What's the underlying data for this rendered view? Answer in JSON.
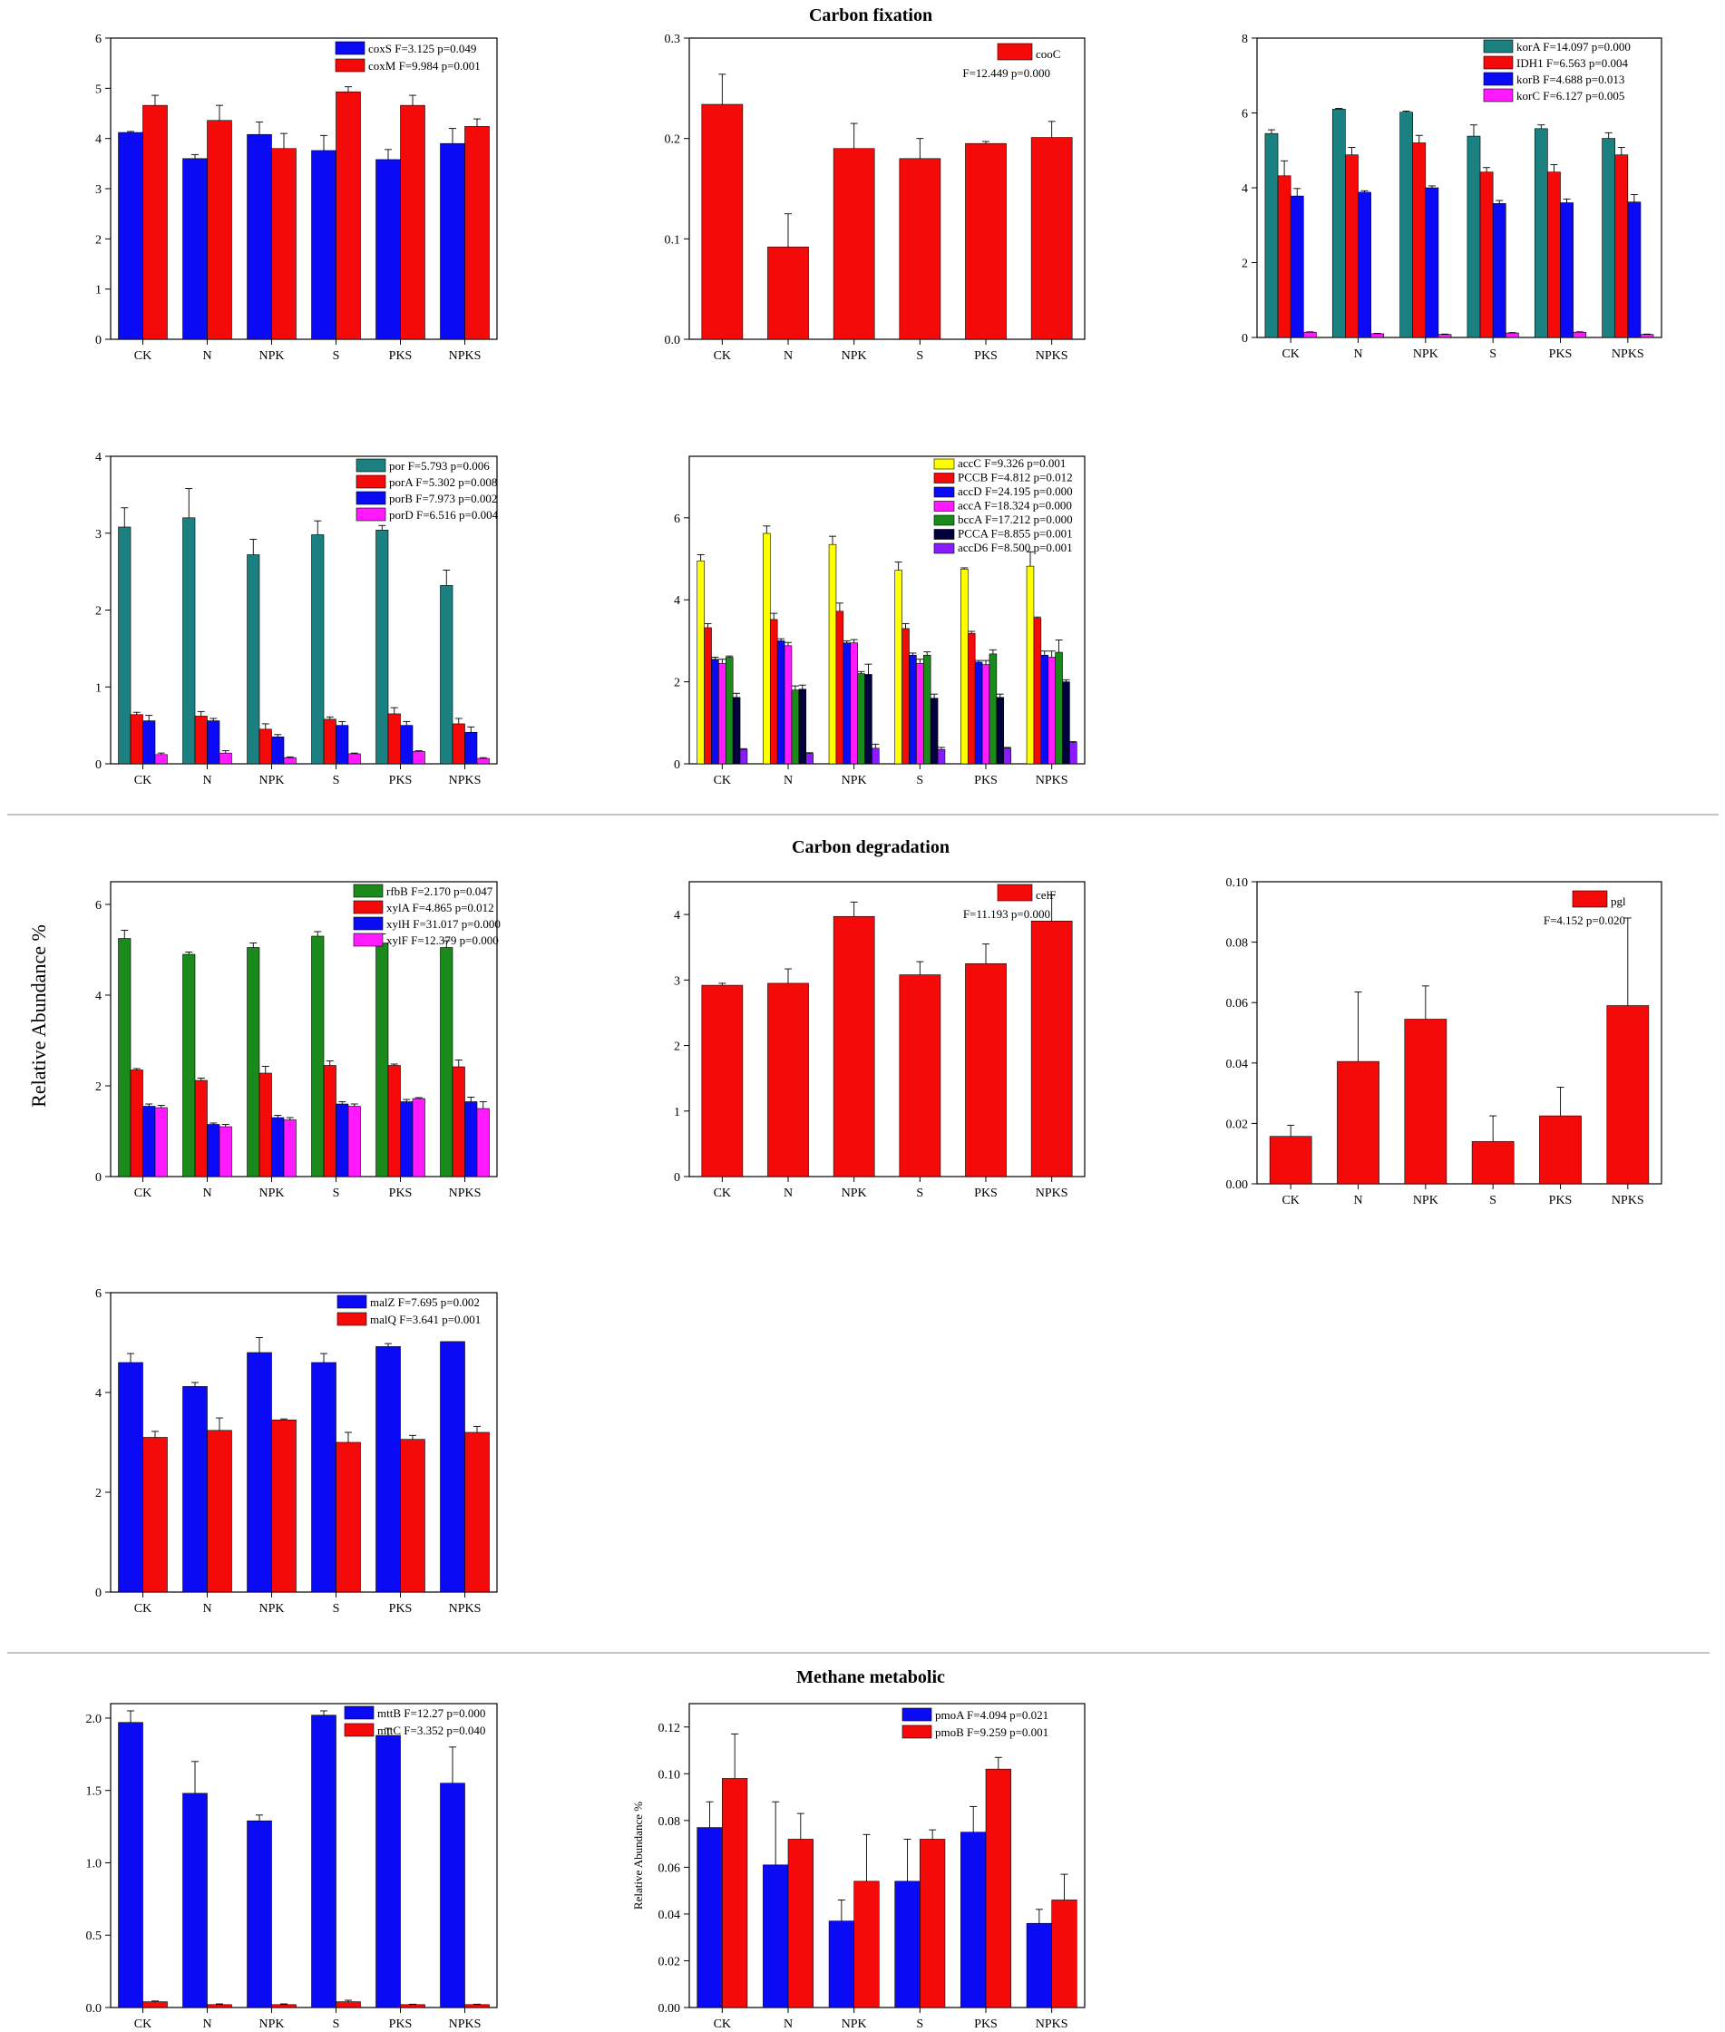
{
  "sections": [
    {
      "title": "Carbon fixation"
    },
    {
      "title": "Carbon degradation"
    },
    {
      "title": "Methane metabolic"
    }
  ],
  "y_axis_label": "Relative Abundance %",
  "colors": {
    "blue": "#0a0af5",
    "red": "#f50a0a",
    "teal": "#1a8080",
    "magenta": "#ff1aff",
    "yellow": "#ffff00",
    "green": "#1a8a1a",
    "navy": "#00003d",
    "purple": "#8a1aff"
  },
  "chart_data": [
    {
      "type": "bar",
      "categories": [
        "CK",
        "N",
        "NPK",
        "S",
        "PKS",
        "NPKS"
      ],
      "ylim": [
        0,
        6
      ],
      "yticks": [
        "0",
        "1",
        "2",
        "3",
        "4",
        "5",
        "6"
      ],
      "series": [
        {
          "name": "coxS  F=3.125 p=0.049",
          "color": "blue",
          "values": [
            4.12,
            3.6,
            4.08,
            3.76,
            3.58,
            3.9
          ],
          "err": [
            0.02,
            0.08,
            0.25,
            0.3,
            0.2,
            0.3
          ]
        },
        {
          "name": "coxM F=9.984 p=0.001",
          "color": "red",
          "values": [
            4.66,
            4.36,
            3.8,
            4.93,
            4.66,
            4.24
          ],
          "err": [
            0.2,
            0.3,
            0.3,
            0.1,
            0.2,
            0.15
          ]
        }
      ]
    },
    {
      "type": "bar",
      "categories": [
        "CK",
        "N",
        "NPK",
        "S",
        "PKS",
        "NPKS"
      ],
      "ylim": [
        0,
        0.3
      ],
      "yticks": [
        "0.0",
        "0.1",
        "0.2",
        "0.3"
      ],
      "annotation": "F=12.449 p=0.000",
      "series": [
        {
          "name": "cooC",
          "color": "red",
          "values": [
            0.234,
            0.092,
            0.19,
            0.18,
            0.195,
            0.201
          ],
          "err": [
            0.03,
            0.033,
            0.025,
            0.02,
            0.002,
            0.016
          ]
        }
      ]
    },
    {
      "type": "bar",
      "categories": [
        "CK",
        "N",
        "NPK",
        "S",
        "PKS",
        "NPKS"
      ],
      "ylim": [
        0,
        8
      ],
      "yticks": [
        "0",
        "2",
        "4",
        "6",
        "8"
      ],
      "series": [
        {
          "name": "korA  F=14.097 p=0.000",
          "color": "teal",
          "values": [
            5.45,
            6.1,
            6.02,
            5.38,
            5.58,
            5.32
          ],
          "err": [
            0.1,
            0.02,
            0.03,
            0.3,
            0.1,
            0.15
          ]
        },
        {
          "name": "IDH1  F=6.563 p=0.004",
          "color": "red",
          "values": [
            4.32,
            4.88,
            5.2,
            4.42,
            4.42,
            4.88
          ],
          "err": [
            0.4,
            0.2,
            0.2,
            0.12,
            0.2,
            0.2
          ]
        },
        {
          "name": "korB  F=4.688 p=0.013",
          "color": "blue",
          "values": [
            3.78,
            3.88,
            4.0,
            3.58,
            3.6,
            3.62
          ],
          "err": [
            0.2,
            0.04,
            0.05,
            0.08,
            0.1,
            0.2
          ]
        },
        {
          "name": "korC  F=6.127 p=0.005",
          "color": "magenta",
          "values": [
            0.14,
            0.1,
            0.08,
            0.12,
            0.14,
            0.08
          ],
          "err": [
            0.01,
            0.01,
            0.01,
            0.01,
            0.01,
            0.01
          ]
        }
      ]
    },
    {
      "type": "bar",
      "categories": [
        "CK",
        "N",
        "NPK",
        "S",
        "PKS",
        "NPKS"
      ],
      "ylim": [
        0,
        4
      ],
      "yticks": [
        "0",
        "1",
        "2",
        "3",
        "4"
      ],
      "series": [
        {
          "name": "por    F=5.793 p=0.006",
          "color": "teal",
          "values": [
            3.08,
            3.2,
            2.72,
            2.98,
            3.04,
            2.32
          ],
          "err": [
            0.25,
            0.38,
            0.2,
            0.18,
            0.06,
            0.2
          ]
        },
        {
          "name": "porA  F=5.302 p=0.008",
          "color": "red",
          "values": [
            0.64,
            0.62,
            0.45,
            0.58,
            0.65,
            0.52
          ],
          "err": [
            0.03,
            0.06,
            0.07,
            0.03,
            0.08,
            0.07
          ]
        },
        {
          "name": "porB F=7.973 p=0.002",
          "color": "blue",
          "values": [
            0.56,
            0.56,
            0.35,
            0.5,
            0.5,
            0.41
          ],
          "err": [
            0.07,
            0.03,
            0.03,
            0.05,
            0.05,
            0.07
          ]
        },
        {
          "name": "porD  F=6.516 p=0.004",
          "color": "magenta",
          "values": [
            0.12,
            0.14,
            0.08,
            0.13,
            0.16,
            0.07
          ],
          "err": [
            0.02,
            0.03,
            0.01,
            0.01,
            0.01,
            0.01
          ]
        }
      ]
    },
    {
      "type": "bar",
      "categories": [
        "CK",
        "N",
        "NPK",
        "S",
        "PKS",
        "NPKS"
      ],
      "ylim": [
        0,
        7.5
      ],
      "yticks": [
        "0",
        "2",
        "4",
        "6"
      ],
      "series": [
        {
          "name": "accC      F=9.326 p=0.001",
          "color": "yellow",
          "values": [
            4.95,
            5.62,
            5.35,
            4.72,
            4.75,
            4.82
          ],
          "err": [
            0.15,
            0.18,
            0.2,
            0.2,
            0.03,
            0.35
          ]
        },
        {
          "name": "PCCB     F=4.812 p=0.012",
          "color": "red",
          "values": [
            3.32,
            3.52,
            3.72,
            3.3,
            3.18,
            3.55
          ],
          "err": [
            0.1,
            0.15,
            0.2,
            0.12,
            0.05,
            0.03
          ]
        },
        {
          "name": "accD      F=24.195 p=0.000",
          "color": "blue",
          "values": [
            2.55,
            3.0,
            2.95,
            2.65,
            2.48,
            2.65
          ],
          "err": [
            0.05,
            0.05,
            0.05,
            0.05,
            0.04,
            0.1
          ]
        },
        {
          "name": "accA      F=18.324 p=0.000",
          "color": "magenta",
          "values": [
            2.45,
            2.88,
            2.95,
            2.45,
            2.42,
            2.6
          ],
          "err": [
            0.1,
            0.08,
            0.08,
            0.1,
            0.1,
            0.15
          ]
        },
        {
          "name": "bccA      F=17.212 p=0.000",
          "color": "green",
          "values": [
            2.6,
            1.8,
            2.2,
            2.65,
            2.68,
            2.72
          ],
          "err": [
            0.03,
            0.1,
            0.05,
            0.08,
            0.1,
            0.3
          ]
        },
        {
          "name": "PCCA     F=8.855 p=0.001",
          "color": "navy",
          "values": [
            1.62,
            1.82,
            2.18,
            1.6,
            1.62,
            2.0
          ],
          "err": [
            0.1,
            0.1,
            0.25,
            0.1,
            0.08,
            0.05
          ]
        },
        {
          "name": "accD6    F=8.500 p=0.001",
          "color": "purple",
          "values": [
            0.35,
            0.25,
            0.38,
            0.35,
            0.38,
            0.52
          ],
          "err": [
            0.02,
            0.02,
            0.1,
            0.05,
            0.02,
            0.02
          ]
        }
      ]
    },
    {
      "type": "bar",
      "categories": [
        "CK",
        "N",
        "NPK",
        "S",
        "PKS",
        "NPKS"
      ],
      "ylim": [
        0,
        6.5
      ],
      "yticks": [
        "0",
        "2",
        "4",
        "6"
      ],
      "series": [
        {
          "name": "rfbB  F=2.170 p=0.047",
          "color": "green",
          "values": [
            5.25,
            4.9,
            5.05,
            5.3,
            5.15,
            5.05
          ],
          "err": [
            0.18,
            0.05,
            0.1,
            0.1,
            0.2,
            0.15
          ]
        },
        {
          "name": "xylA  F=4.865 p=0.012",
          "color": "red",
          "values": [
            2.35,
            2.12,
            2.28,
            2.45,
            2.45,
            2.42
          ],
          "err": [
            0.03,
            0.05,
            0.15,
            0.1,
            0.03,
            0.15
          ]
        },
        {
          "name": "xylH F=31.017 p=0.000",
          "color": "blue",
          "values": [
            1.55,
            1.15,
            1.3,
            1.6,
            1.65,
            1.65
          ],
          "err": [
            0.05,
            0.03,
            0.05,
            0.05,
            0.05,
            0.1
          ]
        },
        {
          "name": "xylF F=12.379 p=0.000",
          "color": "magenta",
          "values": [
            1.52,
            1.1,
            1.25,
            1.55,
            1.72,
            1.5
          ],
          "err": [
            0.05,
            0.05,
            0.05,
            0.05,
            0.02,
            0.15
          ]
        }
      ]
    },
    {
      "type": "bar",
      "categories": [
        "CK",
        "N",
        "NPK",
        "S",
        "PKS",
        "NPKS"
      ],
      "ylim": [
        0,
        4.5
      ],
      "yticks": [
        "0",
        "1",
        "2",
        "3",
        "4"
      ],
      "annotation": "F=11.193 p=0.000",
      "series": [
        {
          "name": "celF",
          "color": "red",
          "values": [
            2.92,
            2.95,
            3.97,
            3.08,
            3.25,
            3.9
          ],
          "err": [
            0.03,
            0.22,
            0.22,
            0.2,
            0.3,
            0.4
          ]
        }
      ]
    },
    {
      "type": "bar",
      "categories": [
        "CK",
        "N",
        "NPK",
        "S",
        "PKS",
        "NPKS"
      ],
      "ylim": [
        0,
        0.1
      ],
      "yticks": [
        "0.00",
        "0.02",
        "0.04",
        "0.06",
        "0.08",
        "0.10"
      ],
      "annotation": "F=4.152 p=0.020",
      "series": [
        {
          "name": "pgl",
          "color": "red",
          "values": [
            0.0157,
            0.0405,
            0.0545,
            0.014,
            0.0225,
            0.059
          ],
          "err": [
            0.0037,
            0.023,
            0.011,
            0.0085,
            0.0095,
            0.029
          ]
        }
      ]
    },
    {
      "type": "bar",
      "categories": [
        "CK",
        "N",
        "NPK",
        "S",
        "PKS",
        "NPKS"
      ],
      "ylim": [
        0,
        6
      ],
      "yticks": [
        "0",
        "2",
        "4",
        "6"
      ],
      "series": [
        {
          "name": "malZ  F=7.695 p=0.002",
          "color": "blue",
          "values": [
            4.6,
            4.12,
            4.8,
            4.6,
            4.92,
            5.02
          ],
          "err": [
            0.18,
            0.08,
            0.3,
            0.18,
            0.06,
            0.0
          ]
        },
        {
          "name": "malQ  F=3.641 p=0.001",
          "color": "red",
          "values": [
            3.1,
            3.24,
            3.45,
            3.0,
            3.06,
            3.2
          ],
          "err": [
            0.12,
            0.25,
            0.02,
            0.2,
            0.08,
            0.12
          ]
        }
      ]
    },
    {
      "type": "bar",
      "categories": [
        "CK",
        "N",
        "NPK",
        "S",
        "PKS",
        "NPKS"
      ],
      "ylim": [
        0,
        2.1
      ],
      "yticks": [
        "0.0",
        "0.5",
        "1.0",
        "1.5",
        "2.0"
      ],
      "series": [
        {
          "name": "mttB  F=12.27 p=0.000",
          "color": "blue",
          "values": [
            1.97,
            1.48,
            1.29,
            2.02,
            1.88,
            1.55
          ],
          "err": [
            0.08,
            0.22,
            0.04,
            0.03,
            0.05,
            0.25
          ]
        },
        {
          "name": "mttC  F=3.352 p=0.040",
          "color": "red",
          "values": [
            0.04,
            0.02,
            0.02,
            0.04,
            0.02,
            0.02
          ],
          "err": [
            0.005,
            0.005,
            0.005,
            0.01,
            0.003,
            0.003
          ]
        }
      ]
    },
    {
      "type": "bar",
      "categories": [
        "CK",
        "N",
        "NPK",
        "S",
        "PKS",
        "NPKS"
      ],
      "ylim": [
        0,
        0.13
      ],
      "yticks": [
        "0.00",
        "0.02",
        "0.04",
        "0.06",
        "0.08",
        "0.10",
        "0.12"
      ],
      "ylabel": "Relative Abundance %",
      "series": [
        {
          "name": "pmoA  F=4.094 p=0.021",
          "color": "blue",
          "values": [
            0.077,
            0.061,
            0.037,
            0.054,
            0.075,
            0.036
          ],
          "err": [
            0.011,
            0.027,
            0.009,
            0.018,
            0.011,
            0.006
          ]
        },
        {
          "name": "pmoB  F=9.259 p=0.001",
          "color": "red",
          "values": [
            0.098,
            0.072,
            0.054,
            0.072,
            0.102,
            0.046
          ],
          "err": [
            0.019,
            0.011,
            0.02,
            0.004,
            0.005,
            0.011
          ]
        }
      ]
    }
  ]
}
